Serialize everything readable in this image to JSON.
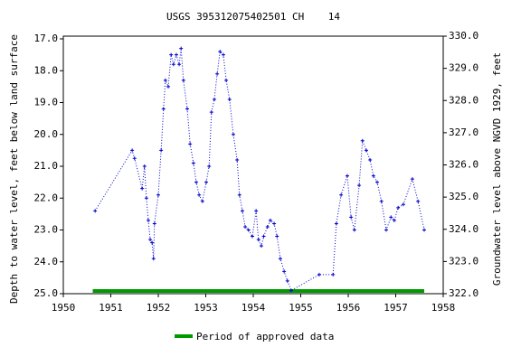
{
  "chart_data": {
    "type": "line",
    "title": "USGS 395312075402501 CH    14",
    "y_label": "Depth to water level, feet below land surface",
    "y2_label": "Groundwater level above NGVD 1929, feet",
    "x": [
      1950.67,
      1951.45,
      1951.5,
      1951.66,
      1951.71,
      1951.75,
      1951.79,
      1951.83,
      1951.87,
      1951.9,
      1951.92,
      1952.0,
      1952.06,
      1952.11,
      1952.15,
      1952.21,
      1952.27,
      1952.32,
      1952.38,
      1952.44,
      1952.48,
      1952.53,
      1952.61,
      1952.67,
      1952.74,
      1952.8,
      1952.86,
      1952.93,
      1953.01,
      1953.07,
      1953.12,
      1953.18,
      1953.24,
      1953.3,
      1953.37,
      1953.43,
      1953.5,
      1953.58,
      1953.66,
      1953.71,
      1953.77,
      1953.83,
      1953.9,
      1953.98,
      1954.06,
      1954.11,
      1954.17,
      1954.22,
      1954.3,
      1954.36,
      1954.44,
      1954.5,
      1954.57,
      1954.65,
      1954.72,
      1954.8,
      1955.39,
      1955.68,
      1955.75,
      1955.85,
      1955.98,
      1956.06,
      1956.13,
      1956.23,
      1956.3,
      1956.38,
      1956.46,
      1956.53,
      1956.61,
      1956.7,
      1956.8,
      1956.9,
      1956.97,
      1957.05,
      1957.16,
      1957.35,
      1957.47,
      1957.6
    ],
    "values": [
      22.4,
      20.5,
      20.75,
      21.7,
      21.0,
      22.0,
      22.7,
      23.3,
      23.4,
      23.9,
      22.8,
      21.9,
      20.5,
      19.2,
      18.3,
      18.5,
      17.5,
      17.8,
      17.5,
      17.8,
      17.3,
      18.3,
      19.2,
      20.3,
      20.9,
      21.5,
      21.9,
      22.1,
      21.5,
      21.0,
      19.3,
      18.9,
      18.1,
      17.4,
      17.5,
      18.3,
      18.9,
      20.0,
      20.8,
      21.9,
      22.4,
      22.9,
      23.0,
      23.2,
      22.4,
      23.3,
      23.5,
      23.2,
      22.9,
      22.7,
      22.8,
      23.2,
      23.9,
      24.3,
      24.6,
      24.9,
      24.4,
      24.4,
      22.8,
      21.9,
      21.3,
      22.6,
      23.0,
      21.6,
      20.2,
      20.5,
      20.8,
      21.3,
      21.5,
      22.1,
      23.0,
      22.6,
      22.7,
      22.3,
      22.2,
      21.4,
      22.1,
      23.0
    ],
    "color": "#0000cc",
    "xlim": [
      1950,
      1958
    ],
    "xticks": [
      1950,
      1951,
      1952,
      1953,
      1954,
      1955,
      1956,
      1957,
      1958
    ],
    "ylim": [
      17,
      25
    ],
    "y_inverted": true,
    "yticks": [
      {
        "value": 17,
        "label": "17.0"
      },
      {
        "value": 18,
        "label": "18.0"
      },
      {
        "value": 19,
        "label": "19.0"
      },
      {
        "value": 20,
        "label": "20.0"
      },
      {
        "value": 21,
        "label": "21.0"
      },
      {
        "value": 22,
        "label": "22.0"
      },
      {
        "value": 23,
        "label": "23.0"
      },
      {
        "value": 24,
        "label": "24.0"
      },
      {
        "value": 25,
        "label": "25.0"
      }
    ],
    "y2lim": [
      322,
      330
    ],
    "y2ticks": [
      {
        "value": 330,
        "label": "330.0"
      },
      {
        "value": 329,
        "label": "329.0"
      },
      {
        "value": 328,
        "label": "328.0"
      },
      {
        "value": 327,
        "label": "327.0"
      },
      {
        "value": 326,
        "label": "326.0"
      },
      {
        "value": 325,
        "label": "325.0"
      },
      {
        "value": 324,
        "label": "324.0"
      },
      {
        "value": 323,
        "label": "323.0"
      },
      {
        "value": 322,
        "label": "322.0"
      }
    ],
    "approved_period": [
      1950.62,
      1957.6
    ],
    "approved_color": "#009900",
    "legend": "Period of approved data"
  }
}
